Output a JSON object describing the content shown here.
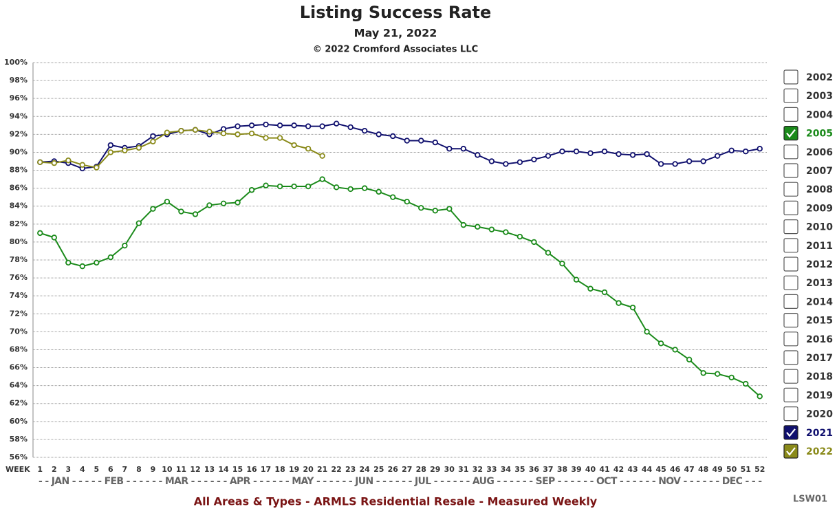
{
  "chart_data": {
    "type": "line",
    "title": "Listing Success Rate",
    "subtitle": "May 21, 2022",
    "copyright": "© 2022 Cromford Associates LLC",
    "x_label": "WEEK",
    "month_axis": "- - JAN - - - - - FEB - - - - - - MAR - - - - - - APR - - - - - - MAY - - - - - - JUN - - - - - - JUL - - - - - - AUG - - - - - - SEP - - - - - - OCT - - - - - - NOV - - - - - - DEC - - -",
    "footer": "All Areas & Types - ARMLS Residential Resale - Measured Weekly",
    "code": "LSW01",
    "x": [
      1,
      2,
      3,
      4,
      5,
      6,
      7,
      8,
      9,
      10,
      11,
      12,
      13,
      14,
      15,
      16,
      17,
      18,
      19,
      20,
      21,
      22,
      23,
      24,
      25,
      26,
      27,
      28,
      29,
      30,
      31,
      32,
      33,
      34,
      35,
      36,
      37,
      38,
      39,
      40,
      41,
      42,
      43,
      44,
      45,
      46,
      47,
      48,
      49,
      50,
      51,
      52
    ],
    "xlim": [
      0.5,
      52.5
    ],
    "xticks": [
      1,
      2,
      3,
      4,
      5,
      6,
      7,
      8,
      9,
      10,
      11,
      12,
      13,
      14,
      15,
      16,
      17,
      18,
      19,
      20,
      21,
      22,
      23,
      24,
      25,
      26,
      27,
      28,
      29,
      30,
      31,
      32,
      33,
      34,
      35,
      36,
      37,
      38,
      39,
      40,
      41,
      42,
      43,
      44,
      45,
      46,
      47,
      48,
      49,
      50,
      51,
      52
    ],
    "ylim": [
      56,
      100
    ],
    "yticks": [
      {
        "value": 56,
        "label": "56%"
      },
      {
        "value": 58,
        "label": "58%"
      },
      {
        "value": 60,
        "label": "60%"
      },
      {
        "value": 62,
        "label": "62%"
      },
      {
        "value": 64,
        "label": "64%"
      },
      {
        "value": 66,
        "label": "66%"
      },
      {
        "value": 68,
        "label": "68%"
      },
      {
        "value": 70,
        "label": "70%"
      },
      {
        "value": 72,
        "label": "72%"
      },
      {
        "value": 74,
        "label": "74%"
      },
      {
        "value": 76,
        "label": "76%"
      },
      {
        "value": 78,
        "label": "78%"
      },
      {
        "value": 80,
        "label": "80%"
      },
      {
        "value": 82,
        "label": "82%"
      },
      {
        "value": 84,
        "label": "84%"
      },
      {
        "value": 86,
        "label": "86%"
      },
      {
        "value": 88,
        "label": "88%"
      },
      {
        "value": 90,
        "label": "90%"
      },
      {
        "value": 92,
        "label": "92%"
      },
      {
        "value": 94,
        "label": "94%"
      },
      {
        "value": 96,
        "label": "96%"
      },
      {
        "value": 98,
        "label": "98%"
      },
      {
        "value": 100,
        "label": "100%"
      }
    ],
    "grid": true,
    "series": [
      {
        "name": "2005",
        "color": "#1a8a1a",
        "values": [
          81.0,
          80.5,
          77.7,
          77.3,
          77.7,
          78.3,
          79.6,
          82.1,
          83.7,
          84.5,
          83.4,
          83.1,
          84.1,
          84.3,
          84.4,
          85.8,
          86.3,
          86.2,
          86.2,
          86.2,
          87.0,
          86.1,
          85.9,
          86.0,
          85.6,
          85.0,
          84.5,
          83.8,
          83.5,
          83.7,
          81.9,
          81.7,
          81.4,
          81.1,
          80.6,
          80.0,
          78.8,
          77.6,
          75.8,
          74.8,
          74.4,
          73.2,
          72.7,
          70.0,
          68.7,
          68.0,
          66.9,
          65.4,
          65.3,
          64.9,
          64.2,
          62.8
        ]
      },
      {
        "name": "2021",
        "color": "#10106e",
        "values": [
          88.9,
          89.0,
          88.8,
          88.2,
          88.4,
          90.8,
          90.5,
          90.7,
          91.8,
          92.0,
          92.4,
          92.5,
          92.0,
          92.6,
          92.9,
          93.0,
          93.1,
          93.0,
          93.0,
          92.9,
          92.9,
          93.2,
          92.8,
          92.4,
          92.0,
          91.8,
          91.3,
          91.3,
          91.1,
          90.4,
          90.4,
          89.7,
          89.0,
          88.7,
          88.9,
          89.2,
          89.6,
          90.1,
          90.1,
          89.9,
          90.1,
          89.8,
          89.7,
          89.8,
          88.7,
          88.7,
          89.0,
          89.0,
          89.6,
          90.2,
          90.1,
          90.4
        ]
      },
      {
        "name": "2022",
        "color": "#8a8a1a",
        "values": [
          88.9,
          88.8,
          89.1,
          88.6,
          88.3,
          90.0,
          90.2,
          90.5,
          91.2,
          92.2,
          92.4,
          92.5,
          92.3,
          92.1,
          92.0,
          92.1,
          91.6,
          91.6,
          90.8,
          90.4,
          89.6,
          null,
          null,
          null,
          null,
          null,
          null,
          null,
          null,
          null,
          null,
          null,
          null,
          null,
          null,
          null,
          null,
          null,
          null,
          null,
          null,
          null,
          null,
          null,
          null,
          null,
          null,
          null,
          null,
          null,
          null,
          null
        ]
      }
    ],
    "legend": [
      {
        "label": "2002",
        "checked": false
      },
      {
        "label": "2003",
        "checked": false
      },
      {
        "label": "2004",
        "checked": false
      },
      {
        "label": "2005",
        "checked": true
      },
      {
        "label": "2006",
        "checked": false
      },
      {
        "label": "2007",
        "checked": false
      },
      {
        "label": "2008",
        "checked": false
      },
      {
        "label": "2009",
        "checked": false
      },
      {
        "label": "2010",
        "checked": false
      },
      {
        "label": "2011",
        "checked": false
      },
      {
        "label": "2012",
        "checked": false
      },
      {
        "label": "2013",
        "checked": false
      },
      {
        "label": "2014",
        "checked": false
      },
      {
        "label": "2015",
        "checked": false
      },
      {
        "label": "2016",
        "checked": false
      },
      {
        "label": "2017",
        "checked": false
      },
      {
        "label": "2018",
        "checked": false
      },
      {
        "label": "2019",
        "checked": false
      },
      {
        "label": "2020",
        "checked": false
      },
      {
        "label": "2021",
        "checked": true
      },
      {
        "label": "2022",
        "checked": true
      }
    ]
  }
}
